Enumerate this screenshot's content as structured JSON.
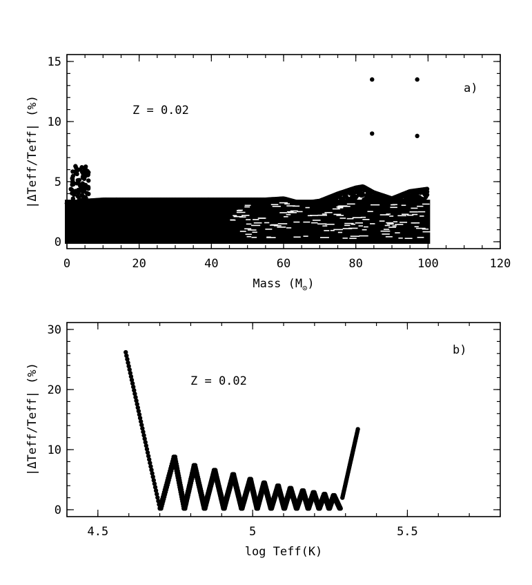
{
  "chart_data": [
    {
      "type": "scatter",
      "panel": "a)",
      "annotation": "Z = 0.02",
      "xlabel": "Mass (M",
      "xlabel_sub": "⊙",
      "xlabel_close": ")",
      "ylabel": "|ΔTeff/Teff| (%)",
      "xlim": [
        0,
        120
      ],
      "ylim": [
        0,
        15
      ],
      "xticks": [
        0,
        20,
        40,
        60,
        80,
        100,
        120
      ],
      "yticks": [
        0,
        5,
        10,
        15
      ],
      "grid": false,
      "dense_regions": [
        {
          "x": [
            0,
            100
          ],
          "y": [
            0,
            3.5
          ]
        }
      ],
      "upper_envelope": {
        "x": [
          0,
          5,
          10,
          20,
          30,
          40,
          50,
          55,
          60,
          65,
          70,
          75,
          80,
          82,
          85,
          90,
          95,
          100
        ],
        "y": [
          3.2,
          3.4,
          3.5,
          3.5,
          3.5,
          3.5,
          3.5,
          3.5,
          3.6,
          3.2,
          3.4,
          4.0,
          4.5,
          4.6,
          4.1,
          3.6,
          4.2,
          4.4
        ]
      },
      "spike_region": {
        "x": [
          1,
          6
        ],
        "y": [
          3.5,
          6.3
        ]
      },
      "outliers": {
        "x": [
          84.5,
          84.5,
          97.0,
          97.0
        ],
        "y": [
          13.5,
          9.0,
          13.5,
          8.8
        ]
      }
    },
    {
      "type": "scatter",
      "panel": "b)",
      "annotation": "Z = 0.02",
      "xlabel": "log Teff(K)",
      "ylabel": "|ΔTeff/Teff| (%)",
      "xlim": [
        4.4,
        5.8
      ],
      "ylim": [
        0,
        30
      ],
      "xticks": [
        4.5,
        5,
        5.5
      ],
      "yticks": [
        0,
        10,
        20,
        30
      ],
      "grid": false,
      "left_branch": {
        "x": [
          4.59,
          4.7
        ],
        "y": [
          26.2,
          0.3
        ]
      },
      "oscillation": {
        "x_start": 4.7,
        "x_end": 5.28,
        "peaks": [
          {
            "x": 4.745,
            "y": 8.8
          },
          {
            "x": 4.81,
            "y": 7.4
          },
          {
            "x": 4.875,
            "y": 6.6
          },
          {
            "x": 4.935,
            "y": 5.9
          },
          {
            "x": 4.99,
            "y": 5.1
          },
          {
            "x": 5.035,
            "y": 4.5
          },
          {
            "x": 5.08,
            "y": 4.0
          },
          {
            "x": 5.12,
            "y": 3.6
          },
          {
            "x": 5.16,
            "y": 3.2
          },
          {
            "x": 5.195,
            "y": 2.9
          },
          {
            "x": 5.23,
            "y": 2.6
          },
          {
            "x": 5.26,
            "y": 2.4
          }
        ],
        "troughs_y": 0.2
      },
      "right_branch": {
        "x": [
          5.29,
          5.34
        ],
        "y": [
          2.0,
          13.4
        ]
      }
    }
  ]
}
